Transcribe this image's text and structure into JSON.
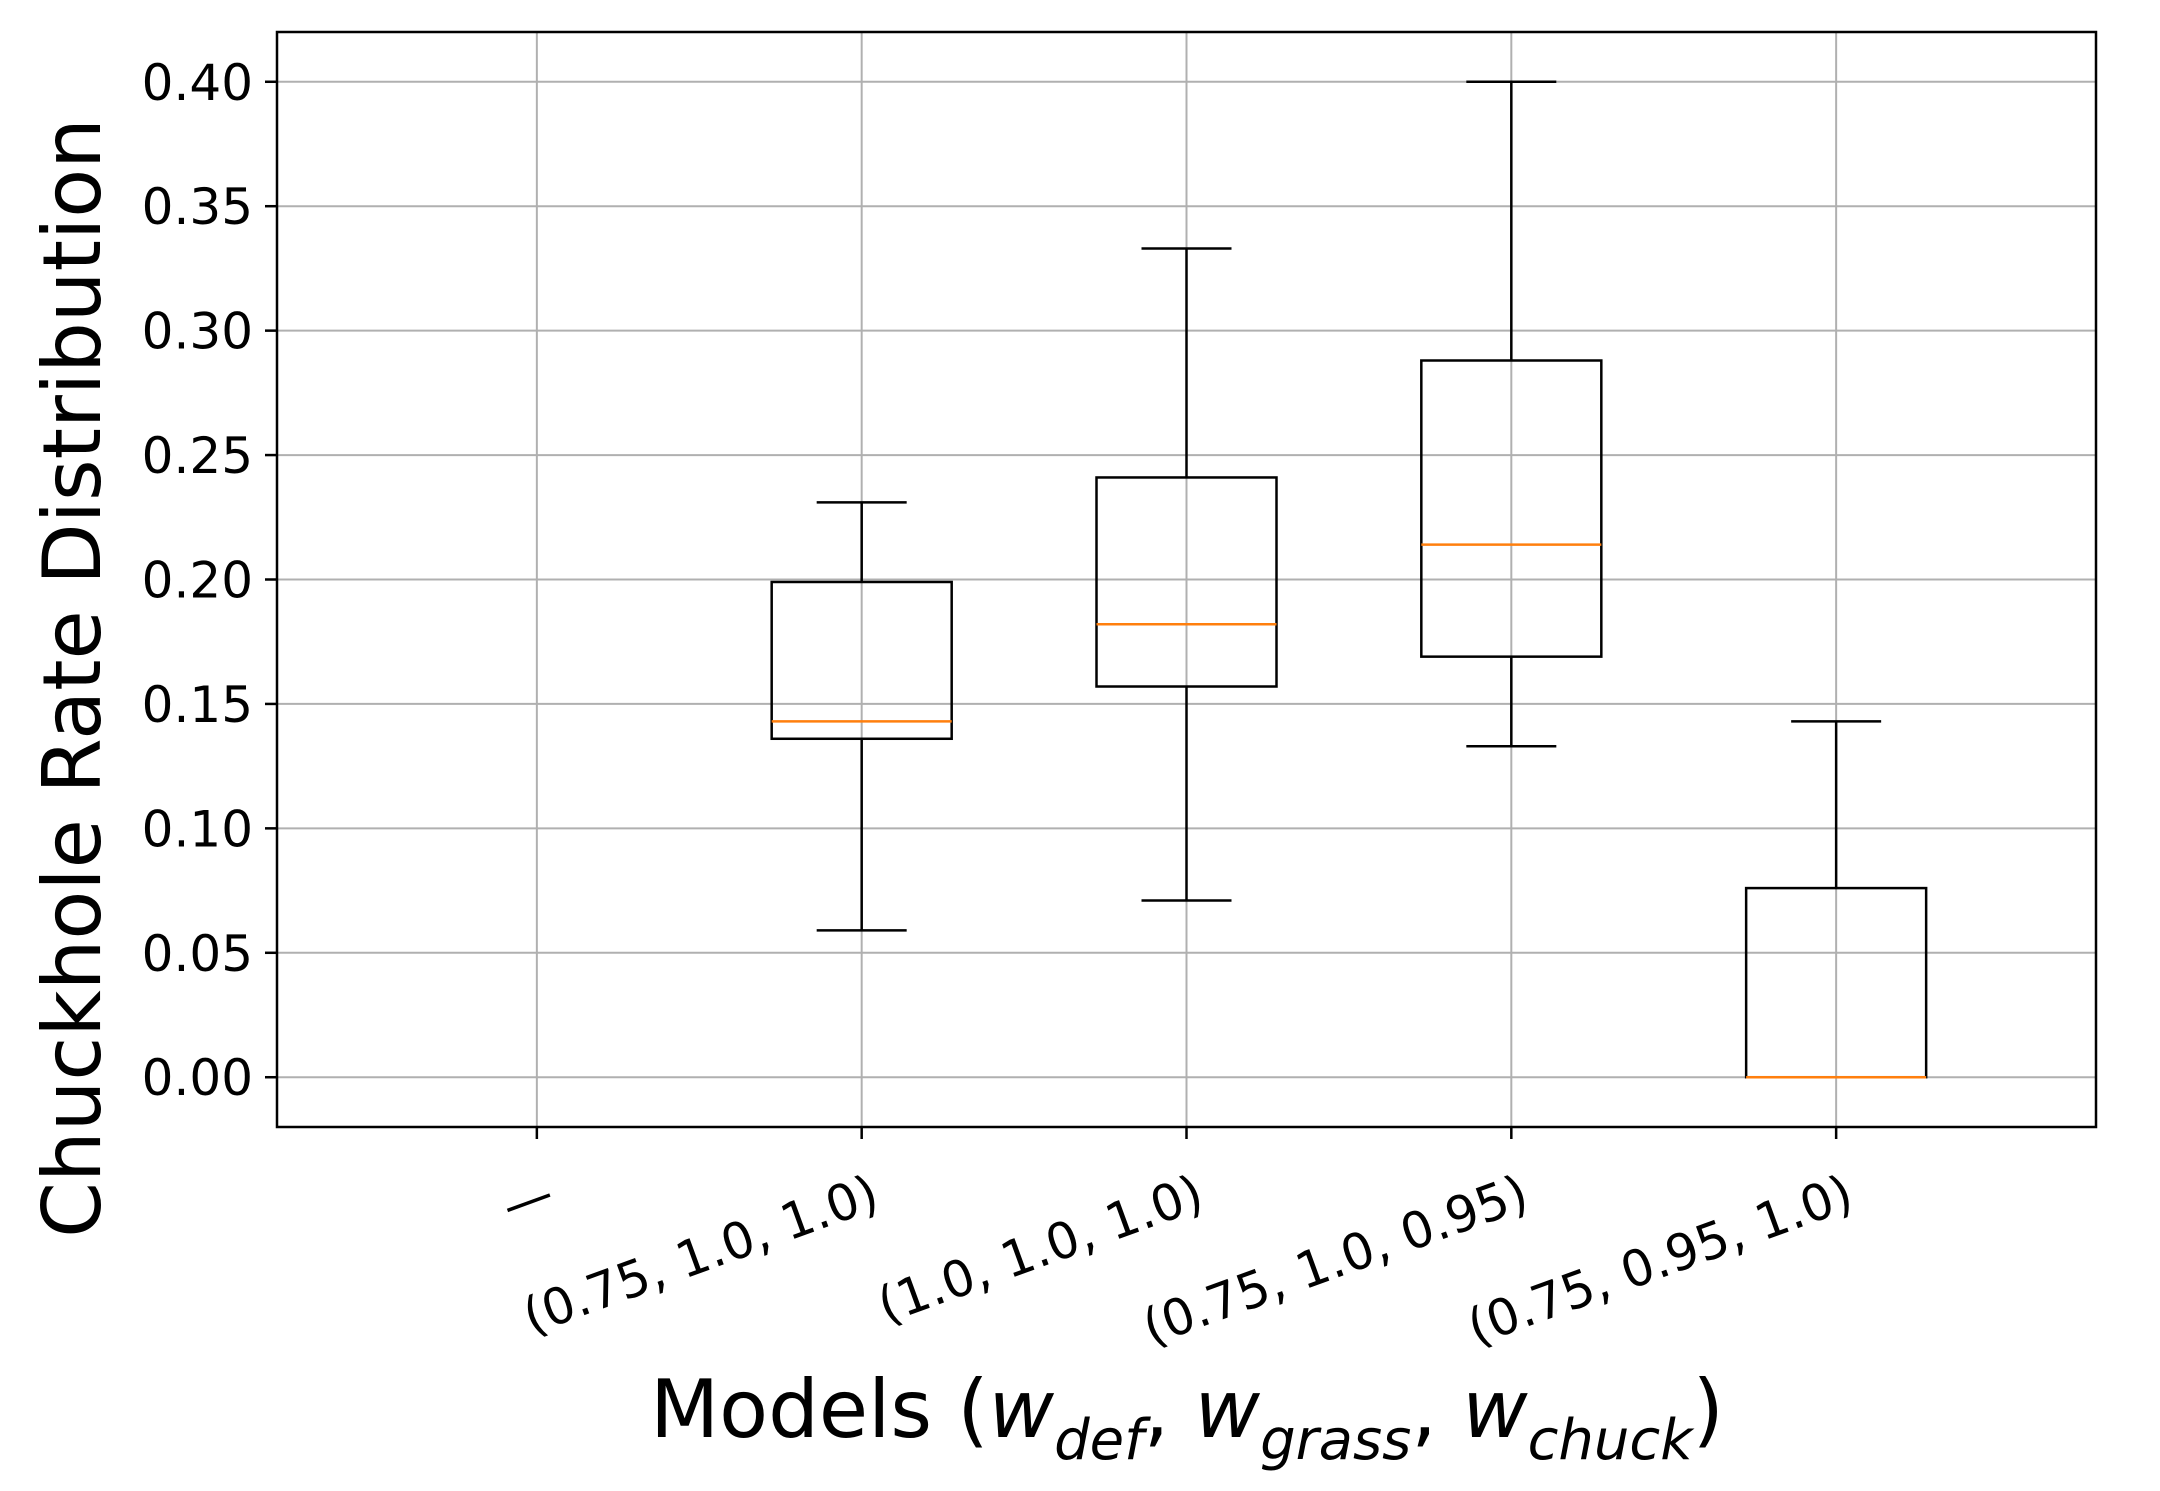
{
  "chart_data": {
    "type": "box",
    "ylabel": "Chuckhole Rate Distribution",
    "xlabel": {
      "prefix": "Models (",
      "terms": [
        {
          "base": "w",
          "sub": "def"
        },
        {
          "base": "w",
          "sub": "grass"
        },
        {
          "base": "w",
          "sub": "chuck"
        }
      ],
      "separator": ", ",
      "suffix": ")"
    },
    "categories": [
      "—",
      "(0.75, 1.0, 1.0)",
      "(1.0, 1.0, 1.0)",
      "(0.75, 1.0, 0.95)",
      "(0.75, 0.95, 1.0)"
    ],
    "boxes": [
      null,
      {
        "whisker_low": 0.059,
        "q1": 0.136,
        "median": 0.143,
        "q3": 0.199,
        "whisker_high": 0.231
      },
      {
        "whisker_low": 0.071,
        "q1": 0.157,
        "median": 0.182,
        "q3": 0.241,
        "whisker_high": 0.333
      },
      {
        "whisker_low": 0.133,
        "q1": 0.169,
        "median": 0.214,
        "q3": 0.288,
        "whisker_high": 0.4
      },
      {
        "whisker_low": 0.0,
        "q1": 0.0,
        "median": 0.0,
        "q3": 0.076,
        "whisker_high": 0.143
      }
    ],
    "yticks": [
      "0.00",
      "0.05",
      "0.10",
      "0.15",
      "0.20",
      "0.25",
      "0.30",
      "0.35",
      "0.40"
    ],
    "ylim": [
      -0.02,
      0.42
    ],
    "grid": true,
    "colors": {
      "box": "#000000",
      "median": "#ff7f0e",
      "grid": "#b0b0b0"
    }
  }
}
